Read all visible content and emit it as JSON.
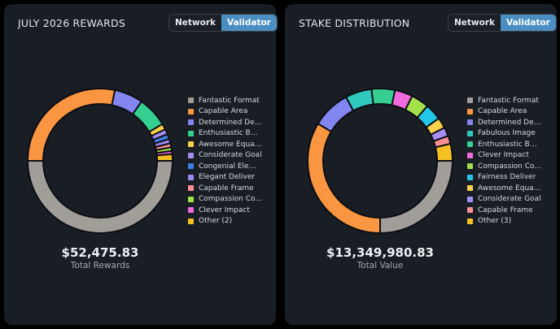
{
  "toggle": {
    "network_label": "Network",
    "validator_label": "Validator",
    "selected": "Validator"
  },
  "chart_data": [
    {
      "type": "pie",
      "variant": "donut",
      "title": "JULY 2026 REWARDS",
      "total_value": "$52,475.83",
      "total_label": "Total Rewards",
      "legend_position": "right",
      "labels": [
        "Fantastic Format",
        "Capable Area",
        "Determined Des...",
        "Enthusiastic Basis",
        "Awesome Equati...",
        "Considerate Goal",
        "Congenial Elem...",
        "Elegant Deliver",
        "Capable Frame",
        "Compassion Co...",
        "Clever Impact",
        "Other (2)"
      ],
      "values": [
        50.0,
        28.3,
        6.4,
        6.8,
        1.3,
        1.2,
        1.1,
        1.0,
        0.9,
        0.8,
        0.7,
        1.5
      ],
      "colors": [
        "#a19e9a",
        "#fa9641",
        "#8385f0",
        "#35cf91",
        "#f7d04c",
        "#a48ef2",
        "#3d7ee8",
        "#9a87ef",
        "#fb8f93",
        "#a3e04a",
        "#f06bde",
        "#f5c022"
      ]
    },
    {
      "type": "pie",
      "variant": "donut",
      "title": "STAKE DISTRIBUTION",
      "total_value": "$13,349,980.83",
      "total_label": "Total Value",
      "legend_position": "right",
      "labels": [
        "Fantastic Format",
        "Capable Area",
        "Determined Des...",
        "Fabulous Image",
        "Enthusiastic Basis",
        "Clever Impact",
        "Compassion Co...",
        "Fairness Deliver",
        "Awesome Equati...",
        "Considerate Goal",
        "Capable Frame",
        "Other (3)"
      ],
      "values": [
        25.0,
        33.6,
        8.6,
        5.9,
        5.2,
        4.0,
        4.0,
        3.7,
        2.4,
        2.0,
        1.8,
        3.8
      ],
      "colors": [
        "#a19e9a",
        "#fa9641",
        "#8385f0",
        "#2fc9c0",
        "#35cf91",
        "#f06bde",
        "#a3e04a",
        "#22c6e6",
        "#f7d04c",
        "#a48ef2",
        "#fb8f93",
        "#f5c022"
      ]
    }
  ]
}
